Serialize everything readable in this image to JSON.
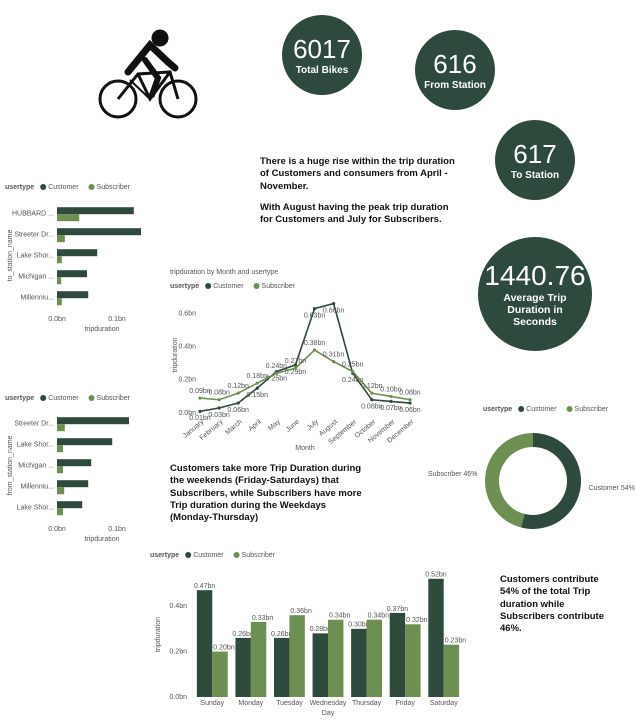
{
  "kpis": [
    {
      "value": 6017,
      "label": "Total Bikes"
    },
    {
      "value": 616,
      "label": "From Station"
    },
    {
      "value": 617,
      "label": "To Station"
    },
    {
      "value": 1440.76,
      "label": "Average Trip Duration in Seconds"
    }
  ],
  "notes": [
    "There is a huge rise within the trip duration of Customers and consumers  from April - November.",
    "With August having the peak trip duration for Customers and July for Subscribers.",
    "Customers take more Trip Duration during the weekends (Friday-Saturdays) that Subscribers, while Subscribers have more Trip duration during the Weekdays (Monday-Thursday)",
    "Customers contribute 54% of the total Trip duration while Subscribers contribute 46%."
  ],
  "chart_data": [
    {
      "type": "hbar",
      "legend_title": "usertype",
      "xlabel": "tripduration",
      "ylabel": "to_station_name",
      "categories": [
        "HUBBARD ...",
        "Streeter Dr...",
        "Lake Shor...",
        "Michigan ...",
        "Millenniu..."
      ],
      "series": [
        {
          "name": "Customer",
          "color": "#2e4a3c",
          "values": [
            0.128,
            0.14,
            0.067,
            0.05,
            0.052
          ]
        },
        {
          "name": "Subscriber",
          "color": "#6e8f52",
          "values": [
            0.037,
            0.013,
            0.008,
            0.007,
            0.008
          ]
        }
      ],
      "xlim": [
        0,
        0.15
      ],
      "xticks": [
        {
          "value": 0,
          "label": "0.0bn"
        },
        {
          "value": 0.1,
          "label": "0.1bn"
        }
      ],
      "grid": false
    },
    {
      "type": "hbar",
      "legend_title": "usertype",
      "xlabel": "tripduration",
      "ylabel": "from_station_name",
      "categories": [
        "Streeter Dr...",
        "Lake Shor...",
        "Michigan ...",
        "Millenniu...",
        "Lake Shor..."
      ],
      "series": [
        {
          "name": "Customer",
          "color": "#2e4a3c",
          "values": [
            0.12,
            0.092,
            0.057,
            0.052,
            0.042
          ]
        },
        {
          "name": "Subscriber",
          "color": "#6e8f52",
          "values": [
            0.013,
            0.01,
            0.01,
            0.012,
            0.01
          ]
        }
      ],
      "xlim": [
        0,
        0.15
      ],
      "xticks": [
        {
          "value": 0,
          "label": "0.0bn"
        },
        {
          "value": 0.1,
          "label": "0.1bn"
        }
      ],
      "grid": false
    },
    {
      "type": "line",
      "title": "tripduration by Month and usertype",
      "legend_title": "usertype",
      "xlabel": "Month",
      "ylabel": "tripduration",
      "categories": [
        "January",
        "February",
        "March",
        "April",
        "May",
        "June",
        "July",
        "August",
        "September",
        "October",
        "November",
        "December"
      ],
      "series": [
        {
          "name": "Customer",
          "color": "#2e4a3c",
          "values": [
            0.01,
            0.03,
            0.06,
            0.15,
            0.25,
            0.29,
            0.63,
            0.66,
            0.24,
            0.08,
            0.07,
            0.06
          ],
          "value_labels": [
            "0.01bn",
            "0.03bn",
            "0.06bn",
            "0.15bn",
            "0.25bn",
            "0.29bn",
            "0.63bn",
            "0.66bn",
            "0.24bn",
            "0.08bn",
            "0.07bn",
            "0.06bn"
          ]
        },
        {
          "name": "Subscriber",
          "color": "#6e8f52",
          "values": [
            0.09,
            0.08,
            0.12,
            0.18,
            0.24,
            0.27,
            0.38,
            0.31,
            0.25,
            0.12,
            0.1,
            0.08
          ],
          "value_labels": [
            "0.09bn",
            "0.08bn",
            "0.12bn",
            "0.18bn",
            "0.24bn",
            "0.27bn",
            "0.38bn",
            "0.31bn",
            "0.25bn",
            "0.12bn",
            "0.10bn",
            "0.08bn"
          ]
        }
      ],
      "ylim": [
        0,
        0.7
      ],
      "yticks": [
        {
          "value": 0,
          "label": "0.0bn"
        },
        {
          "value": 0.2,
          "label": "0.2bn"
        },
        {
          "value": 0.4,
          "label": "0.4bn"
        },
        {
          "value": 0.6,
          "label": "0.6bn"
        }
      ],
      "grid": false
    },
    {
      "type": "pie",
      "legend_title": "usertype",
      "categories": [
        "Customer",
        "Subscriber"
      ],
      "values": [
        54,
        46
      ],
      "value_labels": [
        "Customer 54%",
        "Subscriber 46%"
      ],
      "colors": [
        "#2e4a3c",
        "#6e8f52"
      ],
      "donut": true
    },
    {
      "type": "bar",
      "legend_title": "usertype",
      "xlabel": "Day",
      "ylabel": "tripduration",
      "categories": [
        "Sunday",
        "Monday",
        "Tuesday",
        "Wednesday",
        "Thursday",
        "Friday",
        "Saturday"
      ],
      "series": [
        {
          "name": "Customer",
          "color": "#2e4a3c",
          "values": [
            0.47,
            0.26,
            0.26,
            0.28,
            0.3,
            0.37,
            0.52
          ],
          "value_labels": [
            "0.47bn",
            "0.26bn",
            "0.26bn",
            "0.28bn",
            "0.30bn",
            "0.37bn",
            "0.52bn"
          ]
        },
        {
          "name": "Subscriber",
          "color": "#6e8f52",
          "values": [
            0.2,
            0.33,
            0.36,
            0.34,
            0.34,
            0.32,
            0.23
          ],
          "value_labels": [
            "0.20bn",
            "0.33bn",
            "0.36bn",
            "0.34bn",
            "0.34bn",
            "0.32bn",
            "0.23bn"
          ]
        }
      ],
      "ylim": [
        0,
        0.55
      ],
      "yticks": [
        {
          "value": 0,
          "label": "0.0bn"
        },
        {
          "value": 0.2,
          "label": "0.2bn"
        },
        {
          "value": 0.4,
          "label": "0.4bn"
        }
      ],
      "grid": false
    }
  ]
}
